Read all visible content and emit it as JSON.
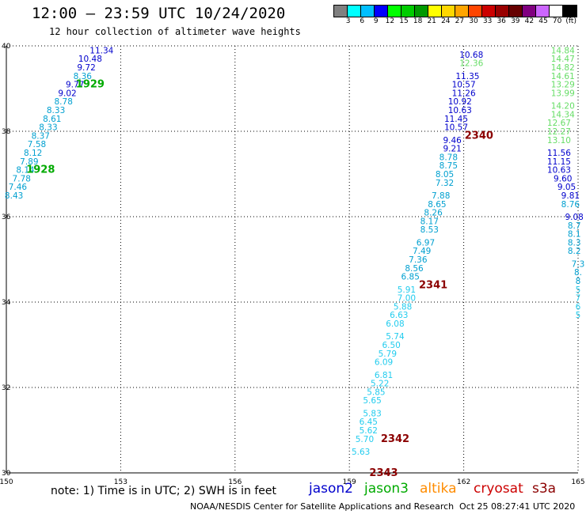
{
  "header": {
    "title": "12:00 – 23:59 UTC 10/24/2020",
    "subtitle": "12 hour collection of altimeter wave heights"
  },
  "colorbar": {
    "colors": [
      "#808080",
      "#00ffff",
      "#00bfff",
      "#0000ff",
      "#00ff00",
      "#00cc00",
      "#009900",
      "#ffff00",
      "#ffd700",
      "#ffa500",
      "#ff4500",
      "#cc0000",
      "#990000",
      "#660000",
      "#800080",
      "#cc66ff",
      "#ffffff",
      "#000000"
    ],
    "labels": [
      "3",
      "6",
      "9",
      "12",
      "15",
      "18",
      "21",
      "24",
      "27",
      "30",
      "33",
      "36",
      "39",
      "42",
      "45",
      "70",
      "(ft)"
    ]
  },
  "map": {
    "lon_ticks": [
      "150",
      "153",
      "156",
      "159",
      "162",
      "165"
    ],
    "lat_ticks": [
      "30",
      "32",
      "34",
      "36",
      "38",
      "40"
    ],
    "lon_range": [
      150,
      165
    ],
    "lat_range": [
      30,
      40
    ]
  },
  "passes": [
    {
      "satellite": "jason3",
      "color": "#00aa00",
      "label": "1929",
      "lon": 152.2,
      "lat": 39.1
    },
    {
      "satellite": "jason3",
      "color": "#00aa00",
      "label": "1928",
      "lon": 150.9,
      "lat": 37.1
    },
    {
      "satellite": "cryosat",
      "color": "#8b0000",
      "label": "2340",
      "lon": 162.4,
      "lat": 37.9
    },
    {
      "satellite": "cryosat",
      "color": "#8b0000",
      "label": "2341",
      "lon": 161.2,
      "lat": 34.4
    },
    {
      "satellite": "cryosat",
      "color": "#8b0000",
      "label": "2342",
      "lon": 160.2,
      "lat": 30.8
    },
    {
      "satellite": "cryosat",
      "color": "#8b0000",
      "label": "2343",
      "lon": 159.9,
      "lat": 30.0
    }
  ],
  "tracks": [
    {
      "name": "track-a",
      "points": [
        {
          "lon": 152.5,
          "lat": 39.9,
          "v": "11.34",
          "c": "#0000cc"
        },
        {
          "lon": 152.2,
          "lat": 39.7,
          "v": "10.48",
          "c": "#0000cc"
        },
        {
          "lon": 152.1,
          "lat": 39.5,
          "v": "9.72",
          "c": "#0000cc"
        },
        {
          "lon": 152.0,
          "lat": 39.3,
          "v": "8.36",
          "c": "#00a0d0"
        },
        {
          "lon": 151.8,
          "lat": 39.1,
          "v": "9.77",
          "c": "#0000cc"
        },
        {
          "lon": 151.6,
          "lat": 38.9,
          "v": "9.02",
          "c": "#0000cc"
        },
        {
          "lon": 151.5,
          "lat": 38.7,
          "v": "8.78",
          "c": "#00a0d0"
        },
        {
          "lon": 151.3,
          "lat": 38.5,
          "v": "8.33",
          "c": "#00a0d0"
        },
        {
          "lon": 151.2,
          "lat": 38.3,
          "v": "8.61",
          "c": "#00a0d0"
        },
        {
          "lon": 151.1,
          "lat": 38.1,
          "v": "8.33",
          "c": "#00a0d0"
        },
        {
          "lon": 150.9,
          "lat": 37.9,
          "v": "8.37",
          "c": "#00a0d0"
        },
        {
          "lon": 150.8,
          "lat": 37.7,
          "v": "7.58",
          "c": "#00a0d0"
        },
        {
          "lon": 150.7,
          "lat": 37.5,
          "v": "8.12",
          "c": "#00a0d0"
        },
        {
          "lon": 150.6,
          "lat": 37.3,
          "v": "7.89",
          "c": "#00a0d0"
        },
        {
          "lon": 150.5,
          "lat": 37.1,
          "v": "8.14",
          "c": "#00a0d0"
        },
        {
          "lon": 150.4,
          "lat": 36.9,
          "v": "7.78",
          "c": "#00a0d0"
        },
        {
          "lon": 150.3,
          "lat": 36.7,
          "v": "7.46",
          "c": "#00a0d0"
        },
        {
          "lon": 150.2,
          "lat": 36.5,
          "v": "8.43",
          "c": "#00a0d0"
        }
      ]
    },
    {
      "name": "track-b",
      "points": [
        {
          "lon": 162.2,
          "lat": 39.8,
          "v": "10.68",
          "c": "#0000cc"
        },
        {
          "lon": 162.2,
          "lat": 39.6,
          "v": "12.36",
          "c": "#66dd66"
        },
        {
          "lon": 162.1,
          "lat": 39.3,
          "v": "11.35",
          "c": "#0000cc"
        },
        {
          "lon": 162.0,
          "lat": 39.1,
          "v": "10.57",
          "c": "#0000cc"
        },
        {
          "lon": 162.0,
          "lat": 38.9,
          "v": "11.26",
          "c": "#0000cc"
        },
        {
          "lon": 161.9,
          "lat": 38.7,
          "v": "10.92",
          "c": "#0000cc"
        },
        {
          "lon": 161.9,
          "lat": 38.5,
          "v": "10.63",
          "c": "#0000cc"
        },
        {
          "lon": 161.8,
          "lat": 38.3,
          "v": "11.45",
          "c": "#0000cc"
        },
        {
          "lon": 161.8,
          "lat": 38.1,
          "v": "10.57",
          "c": "#0000cc"
        },
        {
          "lon": 161.7,
          "lat": 37.8,
          "v": "9.46",
          "c": "#0000cc"
        },
        {
          "lon": 161.7,
          "lat": 37.6,
          "v": "9.21",
          "c": "#0000cc"
        },
        {
          "lon": 161.6,
          "lat": 37.4,
          "v": "8.78",
          "c": "#00a0d0"
        },
        {
          "lon": 161.6,
          "lat": 37.2,
          "v": "8.75",
          "c": "#00a0d0"
        },
        {
          "lon": 161.5,
          "lat": 37.0,
          "v": "8.05",
          "c": "#00a0d0"
        },
        {
          "lon": 161.5,
          "lat": 36.8,
          "v": "7.32",
          "c": "#00a0d0"
        },
        {
          "lon": 161.4,
          "lat": 36.5,
          "v": "7.88",
          "c": "#00a0d0"
        },
        {
          "lon": 161.3,
          "lat": 36.3,
          "v": "8.65",
          "c": "#00a0d0"
        },
        {
          "lon": 161.2,
          "lat": 36.1,
          "v": "8.26",
          "c": "#00a0d0"
        },
        {
          "lon": 161.1,
          "lat": 35.9,
          "v": "8.17",
          "c": "#00a0d0"
        },
        {
          "lon": 161.1,
          "lat": 35.7,
          "v": "8.53",
          "c": "#00a0d0"
        },
        {
          "lon": 161.0,
          "lat": 35.4,
          "v": "6.97",
          "c": "#00a0d0"
        },
        {
          "lon": 160.9,
          "lat": 35.2,
          "v": "7.49",
          "c": "#00a0d0"
        },
        {
          "lon": 160.8,
          "lat": 35.0,
          "v": "7.36",
          "c": "#00a0d0"
        },
        {
          "lon": 160.7,
          "lat": 34.8,
          "v": "8.56",
          "c": "#00a0d0"
        },
        {
          "lon": 160.6,
          "lat": 34.6,
          "v": "6.85",
          "c": "#00a0d0"
        },
        {
          "lon": 160.5,
          "lat": 34.3,
          "v": "5.91",
          "c": "#22ccee"
        },
        {
          "lon": 160.5,
          "lat": 34.1,
          "v": "7.00",
          "c": "#22ccee"
        },
        {
          "lon": 160.4,
          "lat": 33.9,
          "v": "5.88",
          "c": "#22ccee"
        },
        {
          "lon": 160.3,
          "lat": 33.7,
          "v": "6.63",
          "c": "#22ccee"
        },
        {
          "lon": 160.2,
          "lat": 33.5,
          "v": "6.08",
          "c": "#22ccee"
        },
        {
          "lon": 160.2,
          "lat": 33.2,
          "v": "5.74",
          "c": "#22ccee"
        },
        {
          "lon": 160.1,
          "lat": 33.0,
          "v": "6.50",
          "c": "#22ccee"
        },
        {
          "lon": 160.0,
          "lat": 32.8,
          "v": "5.79",
          "c": "#22ccee"
        },
        {
          "lon": 159.9,
          "lat": 32.6,
          "v": "6.09",
          "c": "#22ccee"
        },
        {
          "lon": 159.9,
          "lat": 32.3,
          "v": "6.81",
          "c": "#22ccee"
        },
        {
          "lon": 159.8,
          "lat": 32.1,
          "v": "5.22",
          "c": "#22ccee"
        },
        {
          "lon": 159.7,
          "lat": 31.9,
          "v": "5.85",
          "c": "#22ccee"
        },
        {
          "lon": 159.6,
          "lat": 31.7,
          "v": "5.65",
          "c": "#22ccee"
        },
        {
          "lon": 159.6,
          "lat": 31.4,
          "v": "5.83",
          "c": "#22ccee"
        },
        {
          "lon": 159.5,
          "lat": 31.2,
          "v": "6.45",
          "c": "#22ccee"
        },
        {
          "lon": 159.5,
          "lat": 31.0,
          "v": "5.62",
          "c": "#22ccee"
        },
        {
          "lon": 159.4,
          "lat": 30.8,
          "v": "5.70",
          "c": "#22ccee"
        },
        {
          "lon": 159.3,
          "lat": 30.5,
          "v": "5.63",
          "c": "#22ccee"
        }
      ]
    },
    {
      "name": "track-c",
      "points": [
        {
          "lon": 164.6,
          "lat": 39.9,
          "v": "14.84",
          "c": "#66dd66"
        },
        {
          "lon": 164.6,
          "lat": 39.7,
          "v": "14.47",
          "c": "#66dd66"
        },
        {
          "lon": 164.6,
          "lat": 39.5,
          "v": "14.82",
          "c": "#66dd66"
        },
        {
          "lon": 164.6,
          "lat": 39.3,
          "v": "14.61",
          "c": "#66dd66"
        },
        {
          "lon": 164.6,
          "lat": 39.1,
          "v": "13.29",
          "c": "#66dd66"
        },
        {
          "lon": 164.6,
          "lat": 38.9,
          "v": "13.99",
          "c": "#66dd66"
        },
        {
          "lon": 164.6,
          "lat": 38.6,
          "v": "14.20",
          "c": "#66dd66"
        },
        {
          "lon": 164.6,
          "lat": 38.4,
          "v": "14.34",
          "c": "#66dd66"
        },
        {
          "lon": 164.5,
          "lat": 38.2,
          "v": "12.67",
          "c": "#66dd66"
        },
        {
          "lon": 164.5,
          "lat": 38.0,
          "v": "12.27",
          "c": "#66dd66"
        },
        {
          "lon": 164.5,
          "lat": 37.8,
          "v": "13.10",
          "c": "#66dd66"
        },
        {
          "lon": 164.5,
          "lat": 37.5,
          "v": "11.56",
          "c": "#0000cc"
        },
        {
          "lon": 164.5,
          "lat": 37.3,
          "v": "11.15",
          "c": "#0000cc"
        },
        {
          "lon": 164.5,
          "lat": 37.1,
          "v": "10.63",
          "c": "#0000cc"
        },
        {
          "lon": 164.6,
          "lat": 36.9,
          "v": "9.60",
          "c": "#0000cc"
        },
        {
          "lon": 164.7,
          "lat": 36.7,
          "v": "9.05",
          "c": "#0000cc"
        },
        {
          "lon": 164.8,
          "lat": 36.5,
          "v": "9.81",
          "c": "#0000cc"
        },
        {
          "lon": 164.8,
          "lat": 36.3,
          "v": "8.76",
          "c": "#00a0d0"
        },
        {
          "lon": 164.9,
          "lat": 36.0,
          "v": "9.08",
          "c": "#0000cc"
        },
        {
          "lon": 164.9,
          "lat": 35.8,
          "v": "8.7",
          "c": "#00a0d0"
        },
        {
          "lon": 164.9,
          "lat": 35.6,
          "v": "8.1",
          "c": "#00a0d0"
        },
        {
          "lon": 164.9,
          "lat": 35.4,
          "v": "8.3",
          "c": "#00a0d0"
        },
        {
          "lon": 164.9,
          "lat": 35.2,
          "v": "8.2",
          "c": "#00a0d0"
        },
        {
          "lon": 165.0,
          "lat": 34.9,
          "v": "7.3",
          "c": "#00a0d0"
        },
        {
          "lon": 165.0,
          "lat": 34.7,
          "v": "8.",
          "c": "#00a0d0"
        },
        {
          "lon": 165.0,
          "lat": 34.5,
          "v": "8",
          "c": "#00a0d0"
        },
        {
          "lon": 165.0,
          "lat": 34.3,
          "v": "5",
          "c": "#22ccee"
        },
        {
          "lon": 165.0,
          "lat": 34.1,
          "v": "7",
          "c": "#22ccee"
        },
        {
          "lon": 165.0,
          "lat": 33.9,
          "v": "6",
          "c": "#22ccee"
        },
        {
          "lon": 165.0,
          "lat": 33.7,
          "v": "5",
          "c": "#22ccee"
        }
      ]
    }
  ],
  "footer": {
    "note": "note: 1) Time is in UTC; 2) SWH is in feet",
    "legend": [
      {
        "label": "jason2",
        "color": "#0000cc"
      },
      {
        "label": "jason3",
        "color": "#00aa00"
      },
      {
        "label": "altika",
        "color": "#ff8c00"
      },
      {
        "label": "cryosat",
        "color": "#cc0000"
      },
      {
        "label": "s3a",
        "color": "#8b0000"
      }
    ],
    "credit": "NOAA/NESDIS Center for Satellite Applications and Research",
    "timestamp": "Oct 25 08:27:41 UTC 2020"
  }
}
